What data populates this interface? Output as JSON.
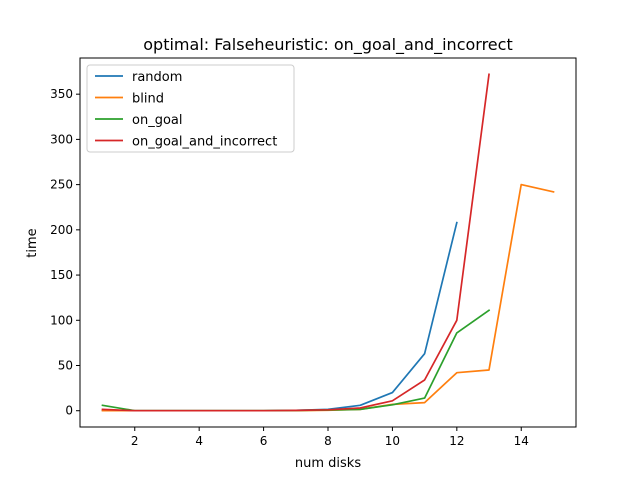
{
  "chart_data": {
    "type": "line",
    "title": "optimal: Falseheuristic: on_goal_and_incorrect",
    "xlabel": "num disks",
    "ylabel": "time",
    "xlim": [
      0.3,
      15.7
    ],
    "ylim": [
      -18,
      390
    ],
    "xticks": [
      2,
      4,
      6,
      8,
      10,
      12,
      14
    ],
    "yticks": [
      0,
      50,
      100,
      150,
      200,
      250,
      300,
      350
    ],
    "grid": false,
    "legend_position": "top-left",
    "series": [
      {
        "name": "random",
        "color": "#1f77b4",
        "x": [
          1,
          2,
          3,
          4,
          5,
          6,
          7,
          8,
          9,
          10,
          11,
          12
        ],
        "y": [
          0.5,
          0,
          0,
          0,
          0,
          0,
          0.3,
          1.5,
          6,
          20,
          63,
          208
        ]
      },
      {
        "name": "blind",
        "color": "#ff7f0e",
        "x": [
          1,
          2,
          3,
          4,
          5,
          6,
          7,
          8,
          9,
          10,
          11,
          12,
          13,
          14,
          15
        ],
        "y": [
          0,
          0,
          0,
          0,
          0,
          0,
          0,
          0.5,
          1.5,
          7,
          9,
          42,
          45,
          250,
          242
        ]
      },
      {
        "name": "on_goal",
        "color": "#2ca02c",
        "x": [
          1,
          2,
          3,
          4,
          5,
          6,
          7,
          8,
          9,
          10,
          11,
          12,
          13
        ],
        "y": [
          6,
          0,
          0,
          0,
          0,
          0,
          0.3,
          0.8,
          1.5,
          6.5,
          14,
          86,
          111
        ]
      },
      {
        "name": "on_goal_and_incorrect",
        "color": "#d62728",
        "x": [
          1,
          2,
          3,
          4,
          5,
          6,
          7,
          8,
          9,
          10,
          11,
          12,
          13
        ],
        "y": [
          1.5,
          0,
          0,
          0,
          0,
          0,
          0.3,
          1,
          3,
          11,
          34,
          100,
          372
        ]
      }
    ]
  }
}
